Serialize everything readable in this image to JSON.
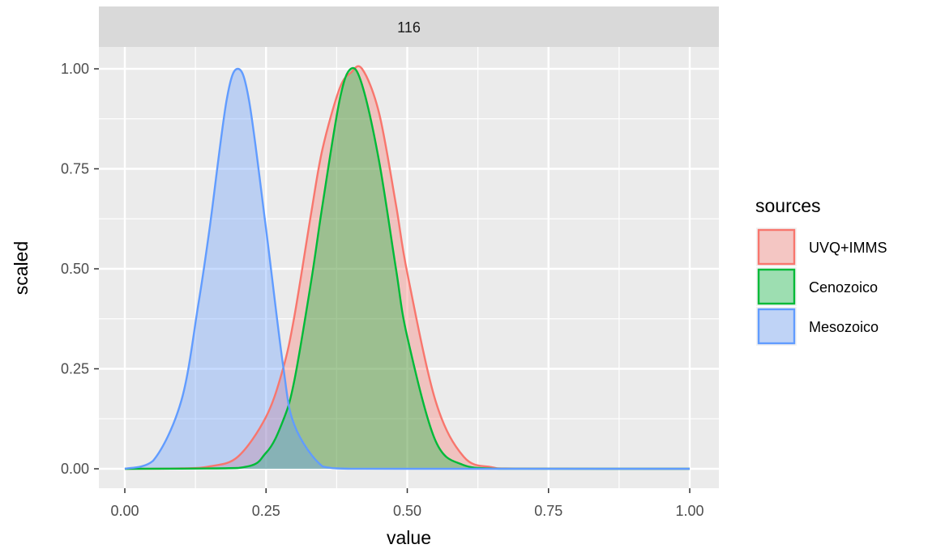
{
  "chart_data": {
    "type": "area",
    "facet": "116",
    "xlabel": "value",
    "ylabel": "scaled",
    "xlim": [
      0,
      1
    ],
    "ylim": [
      0,
      1
    ],
    "x_ticks": [
      "0.00",
      "0.25",
      "0.50",
      "0.75",
      "1.00"
    ],
    "y_ticks": [
      "0.00",
      "0.25",
      "0.50",
      "0.75",
      "1.00"
    ],
    "grid": true,
    "legend_title": "sources",
    "legend_position": "right",
    "series": [
      {
        "name": "UVQ+IMMS",
        "color": "#F8766D",
        "x": [
          0,
          0.1,
          0.15,
          0.2,
          0.25,
          0.28,
          0.3,
          0.33,
          0.35,
          0.38,
          0.4,
          0.42,
          0.45,
          0.48,
          0.5,
          0.55,
          0.6,
          0.65,
          0.7,
          1.0
        ],
        "y": [
          0,
          0.001,
          0.006,
          0.03,
          0.13,
          0.25,
          0.38,
          0.64,
          0.8,
          0.95,
          0.99,
          1.0,
          0.89,
          0.66,
          0.49,
          0.17,
          0.03,
          0.004,
          0.0005,
          0
        ]
      },
      {
        "name": "Cenozoico",
        "color": "#00BA38",
        "x": [
          0,
          0.2,
          0.25,
          0.28,
          0.3,
          0.33,
          0.35,
          0.38,
          0.4,
          0.42,
          0.45,
          0.48,
          0.5,
          0.55,
          0.6,
          0.65,
          0.7,
          1.0
        ],
        "y": [
          0,
          0.002,
          0.04,
          0.12,
          0.22,
          0.47,
          0.66,
          0.92,
          1.0,
          0.96,
          0.77,
          0.5,
          0.33,
          0.07,
          0.009,
          0.0007,
          4e-05,
          0
        ]
      },
      {
        "name": "Mesozoico",
        "color": "#619CFF",
        "x": [
          0,
          0.05,
          0.1,
          0.13,
          0.15,
          0.18,
          0.2,
          0.22,
          0.25,
          0.28,
          0.3,
          0.35,
          0.4,
          0.5,
          1.0
        ],
        "y": [
          0,
          0.02,
          0.17,
          0.41,
          0.6,
          0.92,
          1.0,
          0.92,
          0.6,
          0.26,
          0.11,
          0.006,
          0.0001,
          0,
          0
        ]
      }
    ]
  }
}
